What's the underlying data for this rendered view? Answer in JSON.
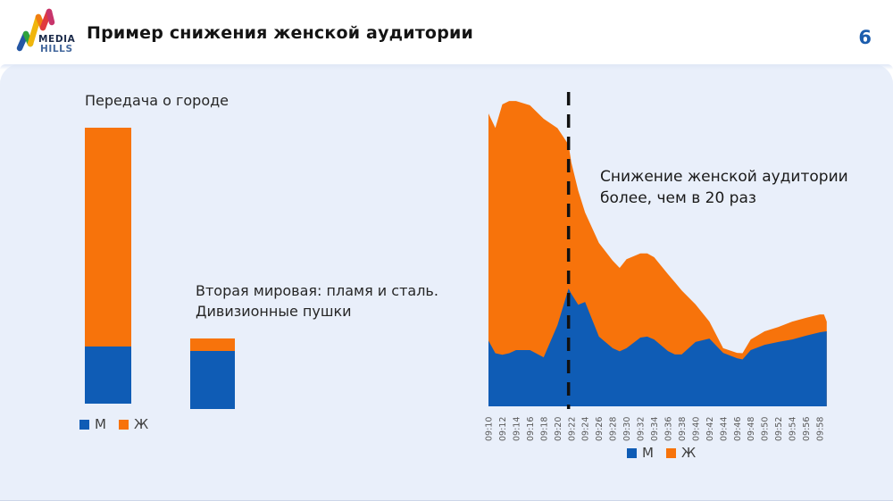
{
  "slide": {
    "title": "Пример снижения женской аудитории",
    "page_number": "6",
    "logo": {
      "line1": "MEDIA",
      "line2": "HILLS"
    }
  },
  "colors": {
    "male": "#0F5CB5",
    "female": "#F7730B",
    "divider": "#111111",
    "page_number": "#1C5DAD",
    "content_bg": "#E9EFFA"
  },
  "legend": {
    "male_label": "М",
    "female_label": "Ж"
  },
  "chart_data": [
    {
      "type": "bar",
      "title": "Передача о городе",
      "stacked": true,
      "categories": [
        ""
      ],
      "series": [
        {
          "name": "М",
          "color_key": "male",
          "values": [
            20.7
          ]
        },
        {
          "name": "Ж",
          "color_key": "female",
          "values": [
            79.3
          ]
        }
      ],
      "y_unit": "relative audience, shared scale for both bar charts",
      "ylim": [
        0,
        100
      ],
      "legend_position": "bottom"
    },
    {
      "type": "bar",
      "title": [
        "Вторая мировая: пламя и сталь.",
        "Дивизионные пушки"
      ],
      "stacked": true,
      "categories": [
        ""
      ],
      "series": [
        {
          "name": "М",
          "color_key": "male",
          "values": [
            21.0
          ]
        },
        {
          "name": "Ж",
          "color_key": "female",
          "values": [
            4.5
          ]
        }
      ],
      "y_unit": "relative audience, shared scale for both bar charts",
      "ylim": [
        0,
        100
      ],
      "legend_position": "none"
    },
    {
      "type": "area",
      "stacked": true,
      "categories": [
        "09:10",
        "09:12",
        "09:14",
        "09:16",
        "09:18",
        "09:20",
        "09:22",
        "09:24",
        "09:26",
        "09:28",
        "09:30",
        "09:32",
        "09:34",
        "09:36",
        "09:38",
        "09:40",
        "09:42",
        "09:44",
        "09:46",
        "09:48",
        "09:50",
        "09:52",
        "09:54",
        "09:56",
        "09:58"
      ],
      "t_grid": [
        0,
        0.5,
        1,
        1.5,
        2,
        3,
        4,
        5,
        5.8,
        6,
        6.5,
        7,
        8,
        9,
        9.5,
        10,
        11,
        11.5,
        12,
        13,
        13.5,
        14,
        15,
        16,
        17,
        18,
        18.4,
        19,
        20,
        21,
        22,
        23,
        24,
        24.3,
        24.5
      ],
      "series": [
        {
          "name": "М",
          "color_key": "male",
          "values": [
            21,
            17,
            16.5,
            17,
            18,
            18,
            15.7,
            26,
            37.7,
            36,
            32.5,
            33.4,
            22.3,
            18.6,
            17.6,
            18.6,
            22,
            22.3,
            21.4,
            17.7,
            16.6,
            16.6,
            20.6,
            21.7,
            17.1,
            15.4,
            15,
            18,
            19.7,
            20.6,
            21.4,
            22.6,
            23.7,
            23.9,
            24
          ]
        },
        {
          "name": "Ж",
          "color_key": "female",
          "values": [
            72.7,
            72.1,
            80.1,
            80.7,
            79.7,
            78.3,
            76.3,
            63,
            46,
            42,
            36.5,
            28.6,
            30,
            28,
            26.7,
            28.5,
            26.9,
            26.6,
            26.3,
            24.6,
            23.1,
            20.5,
            12,
            5.4,
            1.5,
            1.7,
            2,
            3.4,
            4.3,
            4.8,
            5.7,
            5.7,
            5.7,
            5.5,
            3.1
          ]
        }
      ],
      "ylim": [
        0,
        100
      ],
      "y_unit": "relative audience (share of peak total)",
      "x_tick_rotation": 90,
      "legend_position": "bottom",
      "annotation": {
        "line1": "Снижение женской аудитории",
        "line2": "более, чем в 20 раз",
        "divider_t": 5.8
      }
    }
  ]
}
